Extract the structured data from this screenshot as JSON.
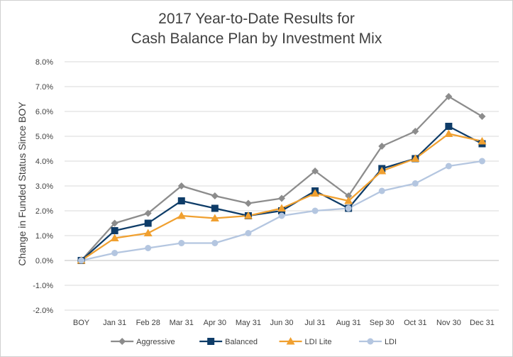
{
  "chart_data": {
    "type": "line",
    "title_line1": "2017 Year-to-Date Results for",
    "title_line2": "Cash Balance Plan by Investment Mix",
    "xlabel": "",
    "ylabel": "Change in Funded Status Since BOY",
    "categories": [
      "BOY",
      "Jan 31",
      "Feb 28",
      "Mar 31",
      "Apr 30",
      "May 31",
      "Jun 30",
      "Jul 31",
      "Aug 31",
      "Sep 30",
      "Oct 31",
      "Nov 30",
      "Dec 31"
    ],
    "ylim": [
      -2.0,
      8.0
    ],
    "yticks": [
      -2.0,
      -1.0,
      0.0,
      1.0,
      2.0,
      3.0,
      4.0,
      5.0,
      6.0,
      7.0,
      8.0
    ],
    "ytick_labels": [
      "-2.0%",
      "-1.0%",
      "0.0%",
      "1.0%",
      "2.0%",
      "3.0%",
      "4.0%",
      "5.0%",
      "6.0%",
      "7.0%",
      "8.0%"
    ],
    "grid": true,
    "legend_position": "bottom",
    "series": [
      {
        "name": "Aggressive",
        "color": "#8c8c8c",
        "marker": "diamond",
        "values": [
          0.0,
          1.5,
          1.9,
          3.0,
          2.6,
          2.3,
          2.5,
          3.6,
          2.6,
          4.6,
          5.2,
          6.6,
          5.8
        ]
      },
      {
        "name": "Balanced",
        "color": "#0e3c68",
        "marker": "square",
        "values": [
          0.0,
          1.2,
          1.5,
          2.4,
          2.1,
          1.8,
          2.0,
          2.8,
          2.1,
          3.7,
          4.1,
          5.4,
          4.7
        ]
      },
      {
        "name": "LDI Lite",
        "color": "#f0a030",
        "marker": "triangle",
        "values": [
          0.0,
          0.9,
          1.1,
          1.8,
          1.7,
          1.8,
          2.1,
          2.7,
          2.4,
          3.6,
          4.1,
          5.1,
          4.8
        ]
      },
      {
        "name": "LDI",
        "color": "#b4c6e0",
        "marker": "circle",
        "values": [
          0.0,
          0.3,
          0.5,
          0.7,
          0.7,
          1.1,
          1.8,
          2.0,
          2.1,
          2.8,
          3.1,
          3.8,
          4.0
        ]
      }
    ]
  }
}
